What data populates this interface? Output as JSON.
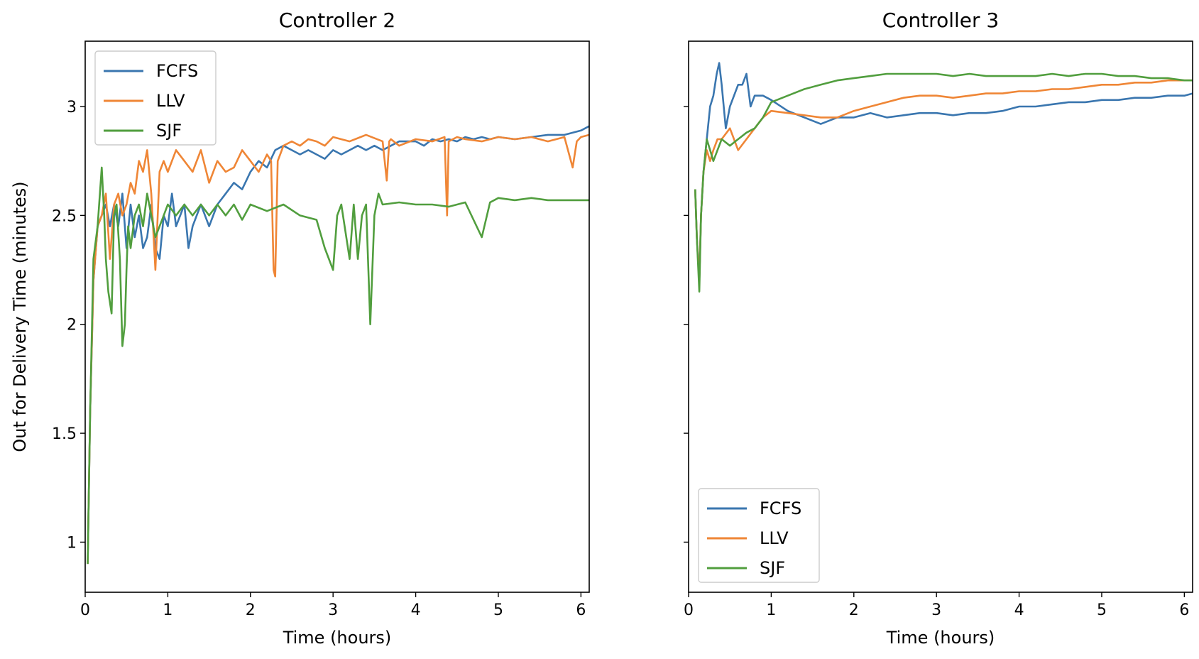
{
  "chart_data": [
    {
      "type": "line",
      "title": "Controller 2",
      "xlabel": "Time (hours)",
      "ylabel": "Out for Delivery Time (minutes)",
      "xlim": [
        0,
        6.1
      ],
      "ylim": [
        0.77,
        3.3
      ],
      "xticks": [
        0,
        1,
        2,
        3,
        4,
        5,
        6
      ],
      "yticks": [
        1.0,
        1.5,
        2.0,
        2.5,
        3.0
      ],
      "legend": "upper-left",
      "series": [
        {
          "name": "FCFS",
          "color": "#3a76af",
          "x": [
            0.03,
            0.06,
            0.1,
            0.15,
            0.2,
            0.25,
            0.3,
            0.35,
            0.4,
            0.45,
            0.5,
            0.55,
            0.6,
            0.65,
            0.7,
            0.75,
            0.8,
            0.85,
            0.9,
            0.95,
            1.0,
            1.05,
            1.1,
            1.15,
            1.2,
            1.25,
            1.3,
            1.35,
            1.4,
            1.45,
            1.5,
            1.6,
            1.7,
            1.8,
            1.9,
            2.0,
            2.1,
            2.2,
            2.3,
            2.4,
            2.5,
            2.6,
            2.7,
            2.8,
            2.9,
            3.0,
            3.1,
            3.2,
            3.3,
            3.4,
            3.5,
            3.6,
            3.7,
            3.8,
            3.9,
            4.0,
            4.1,
            4.2,
            4.3,
            4.4,
            4.5,
            4.6,
            4.7,
            4.8,
            4.9,
            5.0,
            5.2,
            5.4,
            5.6,
            5.8,
            6.0,
            6.1
          ],
          "y": [
            0.9,
            1.6,
            2.2,
            2.45,
            2.5,
            2.55,
            2.45,
            2.55,
            2.45,
            2.6,
            2.35,
            2.55,
            2.4,
            2.5,
            2.35,
            2.4,
            2.55,
            2.35,
            2.3,
            2.5,
            2.45,
            2.6,
            2.45,
            2.5,
            2.55,
            2.35,
            2.45,
            2.5,
            2.55,
            2.5,
            2.45,
            2.55,
            2.6,
            2.65,
            2.62,
            2.7,
            2.75,
            2.72,
            2.8,
            2.82,
            2.8,
            2.78,
            2.8,
            2.78,
            2.76,
            2.8,
            2.78,
            2.8,
            2.82,
            2.8,
            2.82,
            2.8,
            2.82,
            2.84,
            2.84,
            2.84,
            2.82,
            2.85,
            2.84,
            2.85,
            2.84,
            2.86,
            2.85,
            2.86,
            2.85,
            2.86,
            2.85,
            2.86,
            2.87,
            2.87,
            2.89,
            2.91
          ]
        },
        {
          "name": "LLV",
          "color": "#ef8636",
          "x": [
            0.03,
            0.06,
            0.1,
            0.15,
            0.2,
            0.25,
            0.3,
            0.35,
            0.4,
            0.45,
            0.5,
            0.55,
            0.6,
            0.65,
            0.7,
            0.75,
            0.8,
            0.85,
            0.9,
            0.95,
            1.0,
            1.1,
            1.2,
            1.3,
            1.4,
            1.5,
            1.6,
            1.7,
            1.8,
            1.9,
            2.0,
            2.1,
            2.2,
            2.25,
            2.28,
            2.3,
            2.33,
            2.36,
            2.4,
            2.5,
            2.6,
            2.7,
            2.8,
            2.9,
            3.0,
            3.2,
            3.4,
            3.6,
            3.65,
            3.68,
            3.7,
            3.8,
            4.0,
            4.2,
            4.35,
            4.38,
            4.4,
            4.5,
            4.6,
            4.8,
            5.0,
            5.2,
            5.4,
            5.6,
            5.8,
            5.9,
            5.95,
            6.0,
            6.1
          ],
          "y": [
            0.9,
            1.6,
            2.2,
            2.45,
            2.5,
            2.6,
            2.3,
            2.55,
            2.6,
            2.5,
            2.55,
            2.65,
            2.6,
            2.75,
            2.7,
            2.8,
            2.6,
            2.25,
            2.7,
            2.75,
            2.7,
            2.8,
            2.75,
            2.7,
            2.8,
            2.65,
            2.75,
            2.7,
            2.72,
            2.8,
            2.75,
            2.7,
            2.78,
            2.75,
            2.25,
            2.22,
            2.75,
            2.78,
            2.82,
            2.84,
            2.82,
            2.85,
            2.84,
            2.82,
            2.86,
            2.84,
            2.87,
            2.84,
            2.66,
            2.84,
            2.85,
            2.82,
            2.85,
            2.84,
            2.86,
            2.5,
            2.84,
            2.86,
            2.85,
            2.84,
            2.86,
            2.85,
            2.86,
            2.84,
            2.86,
            2.72,
            2.84,
            2.86,
            2.87
          ]
        },
        {
          "name": "SJF",
          "color": "#519e3e",
          "x": [
            0.03,
            0.06,
            0.1,
            0.15,
            0.2,
            0.23,
            0.25,
            0.28,
            0.32,
            0.35,
            0.38,
            0.42,
            0.45,
            0.48,
            0.5,
            0.52,
            0.55,
            0.6,
            0.65,
            0.7,
            0.75,
            0.8,
            0.85,
            0.9,
            0.95,
            1.0,
            1.1,
            1.2,
            1.3,
            1.4,
            1.5,
            1.6,
            1.7,
            1.8,
            1.9,
            2.0,
            2.2,
            2.4,
            2.6,
            2.8,
            2.9,
            3.0,
            3.05,
            3.1,
            3.2,
            3.25,
            3.3,
            3.35,
            3.4,
            3.45,
            3.5,
            3.55,
            3.6,
            3.8,
            4.0,
            4.2,
            4.4,
            4.6,
            4.8,
            4.9,
            5.0,
            5.2,
            5.4,
            5.6,
            5.8,
            6.0,
            6.1
          ],
          "y": [
            0.9,
            1.6,
            2.3,
            2.45,
            2.72,
            2.5,
            2.3,
            2.15,
            2.05,
            2.5,
            2.55,
            2.3,
            1.9,
            2.0,
            2.25,
            2.45,
            2.35,
            2.5,
            2.55,
            2.45,
            2.6,
            2.5,
            2.4,
            2.45,
            2.5,
            2.55,
            2.5,
            2.55,
            2.5,
            2.55,
            2.5,
            2.55,
            2.5,
            2.55,
            2.48,
            2.55,
            2.52,
            2.55,
            2.5,
            2.48,
            2.35,
            2.25,
            2.5,
            2.55,
            2.3,
            2.55,
            2.3,
            2.5,
            2.55,
            2.0,
            2.5,
            2.6,
            2.55,
            2.56,
            2.55,
            2.55,
            2.54,
            2.56,
            2.4,
            2.56,
            2.58,
            2.57,
            2.58,
            2.57,
            2.57,
            2.57,
            2.57
          ]
        }
      ]
    },
    {
      "type": "line",
      "title": "Controller 3",
      "xlabel": "Time (hours)",
      "ylabel": "",
      "xlim": [
        0,
        6.1
      ],
      "ylim": [
        0.77,
        3.3
      ],
      "xticks": [
        0,
        1,
        2,
        3,
        4,
        5,
        6
      ],
      "yticks": [
        1.0,
        1.5,
        2.0,
        2.5,
        3.0
      ],
      "legend": "lower-left",
      "series": [
        {
          "name": "FCFS",
          "color": "#3a76af",
          "x": [
            0.08,
            0.1,
            0.13,
            0.15,
            0.18,
            0.22,
            0.26,
            0.3,
            0.34,
            0.37,
            0.4,
            0.45,
            0.5,
            0.55,
            0.6,
            0.65,
            0.7,
            0.75,
            0.8,
            0.9,
            1.0,
            1.2,
            1.4,
            1.6,
            1.8,
            2.0,
            2.2,
            2.4,
            2.6,
            2.8,
            3.0,
            3.2,
            3.4,
            3.6,
            3.8,
            4.0,
            4.2,
            4.4,
            4.6,
            4.8,
            5.0,
            5.2,
            5.4,
            5.6,
            5.8,
            6.0,
            6.1
          ],
          "y": [
            2.62,
            2.4,
            2.2,
            2.5,
            2.7,
            2.85,
            3.0,
            3.05,
            3.15,
            3.2,
            3.1,
            2.9,
            3.0,
            3.05,
            3.1,
            3.1,
            3.15,
            3.0,
            3.05,
            3.05,
            3.03,
            2.98,
            2.95,
            2.92,
            2.95,
            2.95,
            2.97,
            2.95,
            2.96,
            2.97,
            2.97,
            2.96,
            2.97,
            2.97,
            2.98,
            3.0,
            3.0,
            3.01,
            3.02,
            3.02,
            3.03,
            3.03,
            3.04,
            3.04,
            3.05,
            3.05,
            3.06
          ]
        },
        {
          "name": "LLV",
          "color": "#ef8636",
          "x": [
            0.08,
            0.1,
            0.13,
            0.15,
            0.18,
            0.22,
            0.26,
            0.3,
            0.35,
            0.4,
            0.5,
            0.6,
            0.7,
            0.8,
            0.9,
            1.0,
            1.2,
            1.4,
            1.6,
            1.8,
            2.0,
            2.2,
            2.4,
            2.6,
            2.8,
            3.0,
            3.2,
            3.4,
            3.6,
            3.8,
            4.0,
            4.2,
            4.4,
            4.6,
            4.8,
            5.0,
            5.2,
            5.4,
            5.6,
            5.8,
            6.0,
            6.1
          ],
          "y": [
            2.62,
            2.4,
            2.2,
            2.5,
            2.7,
            2.8,
            2.75,
            2.8,
            2.85,
            2.85,
            2.9,
            2.8,
            2.85,
            2.9,
            2.95,
            2.98,
            2.97,
            2.96,
            2.95,
            2.95,
            2.98,
            3.0,
            3.02,
            3.04,
            3.05,
            3.05,
            3.04,
            3.05,
            3.06,
            3.06,
            3.07,
            3.07,
            3.08,
            3.08,
            3.09,
            3.1,
            3.1,
            3.11,
            3.11,
            3.12,
            3.12,
            3.12
          ]
        },
        {
          "name": "SJF",
          "color": "#519e3e",
          "x": [
            0.08,
            0.1,
            0.13,
            0.15,
            0.18,
            0.22,
            0.26,
            0.3,
            0.35,
            0.4,
            0.5,
            0.6,
            0.7,
            0.8,
            0.9,
            1.0,
            1.2,
            1.4,
            1.6,
            1.8,
            2.0,
            2.2,
            2.4,
            2.6,
            2.8,
            3.0,
            3.2,
            3.4,
            3.6,
            3.8,
            4.0,
            4.2,
            4.4,
            4.6,
            4.8,
            5.0,
            5.2,
            5.4,
            5.6,
            5.8,
            6.0,
            6.1
          ],
          "y": [
            2.62,
            2.4,
            2.15,
            2.5,
            2.7,
            2.85,
            2.8,
            2.75,
            2.8,
            2.85,
            2.82,
            2.85,
            2.88,
            2.9,
            2.95,
            3.02,
            3.05,
            3.08,
            3.1,
            3.12,
            3.13,
            3.14,
            3.15,
            3.15,
            3.15,
            3.15,
            3.14,
            3.15,
            3.14,
            3.14,
            3.14,
            3.14,
            3.15,
            3.14,
            3.15,
            3.15,
            3.14,
            3.14,
            3.13,
            3.13,
            3.12,
            3.12
          ]
        }
      ]
    }
  ]
}
